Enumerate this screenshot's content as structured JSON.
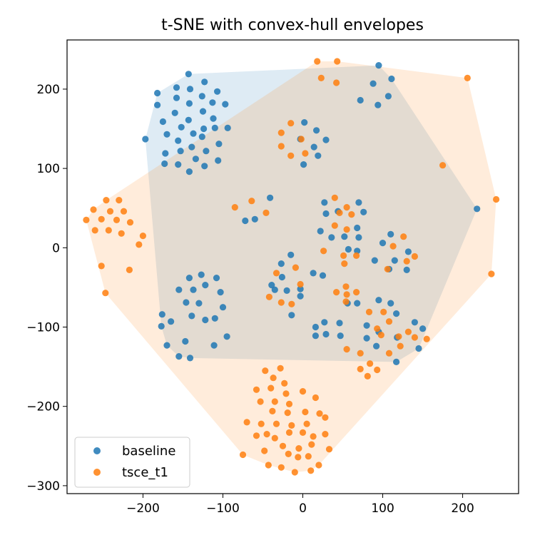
{
  "chart_data": {
    "type": "scatter",
    "title": "t-SNE with convex-hull envelopes",
    "xlabel": "",
    "ylabel": "",
    "xlim": [
      -295,
      270
    ],
    "ylim": [
      -310,
      262
    ],
    "xticks": [
      -200,
      -100,
      0,
      100,
      200
    ],
    "yticks": [
      -300,
      -200,
      -100,
      0,
      100,
      200
    ],
    "xtick_labels": [
      "−200",
      "−100",
      "0",
      "100",
      "200"
    ],
    "ytick_labels": [
      "−300",
      "−200",
      "−100",
      "0",
      "100",
      "200"
    ],
    "grid": false,
    "legend_position": "lower-left",
    "series": [
      {
        "name": "baseline",
        "color": "#1f77b4",
        "hull_color": "#1f77b4",
        "points": [
          [
            -143,
            219
          ],
          [
            -182,
            195
          ],
          [
            -158,
            202
          ],
          [
            -141,
            200
          ],
          [
            -123,
            209
          ],
          [
            -107,
            197
          ],
          [
            -182,
            180
          ],
          [
            -158,
            189
          ],
          [
            -142,
            182
          ],
          [
            -126,
            191
          ],
          [
            -113,
            183
          ],
          [
            -97,
            181
          ],
          [
            -175,
            159
          ],
          [
            -160,
            170
          ],
          [
            -143,
            161
          ],
          [
            -125,
            172
          ],
          [
            -112,
            163
          ],
          [
            -170,
            143
          ],
          [
            -152,
            152
          ],
          [
            -137,
            144
          ],
          [
            -124,
            150
          ],
          [
            -110,
            151
          ],
          [
            -94,
            151
          ],
          [
            -197,
            137
          ],
          [
            -156,
            135
          ],
          [
            -139,
            127
          ],
          [
            -126,
            140
          ],
          [
            -105,
            131
          ],
          [
            -172,
            119
          ],
          [
            -153,
            122
          ],
          [
            -134,
            112
          ],
          [
            -121,
            122
          ],
          [
            -106,
            110
          ],
          [
            -173,
            106
          ],
          [
            -156,
            105
          ],
          [
            -142,
            96
          ],
          [
            -123,
            103
          ],
          [
            95,
            230
          ],
          [
            111,
            213
          ],
          [
            88,
            207
          ],
          [
            107,
            191
          ],
          [
            72,
            186
          ],
          [
            94,
            180
          ],
          [
            -72,
            34
          ],
          [
            -60,
            36
          ],
          [
            -41,
            63
          ],
          [
            2,
            158
          ],
          [
            17,
            148
          ],
          [
            29,
            136
          ],
          [
            14,
            127
          ],
          [
            -3,
            137
          ],
          [
            19,
            116
          ],
          [
            1,
            105
          ],
          [
            27,
            57
          ],
          [
            29,
            43
          ],
          [
            44,
            46
          ],
          [
            70,
            57
          ],
          [
            76,
            45
          ],
          [
            22,
            21
          ],
          [
            36,
            13
          ],
          [
            52,
            14
          ],
          [
            68,
            25
          ],
          [
            70,
            13
          ],
          [
            57,
            -2
          ],
          [
            68,
            -4
          ],
          [
            90,
            -16
          ],
          [
            110,
            17
          ],
          [
            100,
            6
          ],
          [
            115,
            -16
          ],
          [
            130,
            -28
          ],
          [
            132,
            -5
          ],
          [
            108,
            -27
          ],
          [
            -15,
            -9
          ],
          [
            -27,
            -20
          ],
          [
            -39,
            -47
          ],
          [
            -26,
            -37
          ],
          [
            -35,
            -53
          ],
          [
            -20,
            -54
          ],
          [
            -3,
            -52
          ],
          [
            -3,
            -61
          ],
          [
            13,
            -32
          ],
          [
            25,
            -35
          ],
          [
            -14,
            -85
          ],
          [
            -142,
            -38
          ],
          [
            -127,
            -34
          ],
          [
            -108,
            -38
          ],
          [
            -155,
            -53
          ],
          [
            -137,
            -53
          ],
          [
            -122,
            -47
          ],
          [
            -103,
            -56
          ],
          [
            -146,
            -69
          ],
          [
            -130,
            -70
          ],
          [
            -100,
            -75
          ],
          [
            -139,
            -86
          ],
          [
            -122,
            -91
          ],
          [
            -110,
            -89
          ],
          [
            -176,
            -84
          ],
          [
            -177,
            -99
          ],
          [
            -165,
            -93
          ],
          [
            -170,
            -123
          ],
          [
            -155,
            -137
          ],
          [
            -147,
            -118
          ],
          [
            -141,
            -139
          ],
          [
            -111,
            -123
          ],
          [
            -95,
            -112
          ],
          [
            95,
            -66
          ],
          [
            110,
            -70
          ],
          [
            117,
            -83
          ],
          [
            68,
            -70
          ],
          [
            56,
            -70
          ],
          [
            27,
            -94
          ],
          [
            46,
            -95
          ],
          [
            16,
            -100
          ],
          [
            80,
            -98
          ],
          [
            95,
            -106
          ],
          [
            29,
            -109
          ],
          [
            47,
            -111
          ],
          [
            16,
            -111
          ],
          [
            80,
            -114
          ],
          [
            92,
            -124
          ],
          [
            118,
            -113
          ],
          [
            140,
            -94
          ],
          [
            150,
            -102
          ],
          [
            145,
            -127
          ],
          [
            117,
            -144
          ],
          [
            218,
            49
          ]
        ]
      },
      {
        "name": "tsce_t1",
        "color": "#ff7f0e",
        "hull_color": "#ff7f0e",
        "points": [
          [
            18,
            235
          ],
          [
            43,
            235
          ],
          [
            23,
            214
          ],
          [
            42,
            208
          ],
          [
            206,
            214
          ],
          [
            175,
            104
          ],
          [
            242,
            61
          ],
          [
            236,
            -33
          ],
          [
            -15,
            157
          ],
          [
            -27,
            145
          ],
          [
            -2,
            137
          ],
          [
            -27,
            128
          ],
          [
            -15,
            116
          ],
          [
            3,
            119
          ],
          [
            -85,
            51
          ],
          [
            -64,
            59
          ],
          [
            -46,
            44
          ],
          [
            -246,
            60
          ],
          [
            -230,
            60
          ],
          [
            -262,
            48
          ],
          [
            -241,
            46
          ],
          [
            -224,
            46
          ],
          [
            -271,
            35
          ],
          [
            -252,
            36
          ],
          [
            -233,
            35
          ],
          [
            -216,
            32
          ],
          [
            -260,
            22
          ],
          [
            -243,
            22
          ],
          [
            -227,
            18
          ],
          [
            -200,
            15
          ],
          [
            -205,
            4
          ],
          [
            -252,
            -23
          ],
          [
            -217,
            -28
          ],
          [
            -247,
            -57
          ],
          [
            40,
            63
          ],
          [
            46,
            44
          ],
          [
            55,
            51
          ],
          [
            61,
            42
          ],
          [
            40,
            28
          ],
          [
            55,
            23
          ],
          [
            26,
            -4
          ],
          [
            51,
            -10
          ],
          [
            67,
            -10
          ],
          [
            52,
            -20
          ],
          [
            106,
            -27
          ],
          [
            126,
            14
          ],
          [
            113,
            2
          ],
          [
            130,
            -17
          ],
          [
            140,
            -11
          ],
          [
            -33,
            -32
          ],
          [
            -9,
            -25
          ],
          [
            -42,
            -62
          ],
          [
            -27,
            -69
          ],
          [
            -14,
            -71
          ],
          [
            -3,
            -46
          ],
          [
            42,
            -56
          ],
          [
            55,
            -59
          ],
          [
            54,
            -49
          ],
          [
            67,
            -56
          ],
          [
            54,
            -68
          ],
          [
            83,
            -81
          ],
          [
            101,
            -81
          ],
          [
            108,
            -93
          ],
          [
            93,
            -102
          ],
          [
            98,
            -110
          ],
          [
            120,
            -112
          ],
          [
            132,
            -106
          ],
          [
            140,
            -113
          ],
          [
            155,
            -115
          ],
          [
            122,
            -124
          ],
          [
            55,
            -128
          ],
          [
            72,
            -133
          ],
          [
            108,
            -133
          ],
          [
            84,
            -146
          ],
          [
            72,
            -153
          ],
          [
            93,
            -154
          ],
          [
            81,
            -162
          ],
          [
            -47,
            -155
          ],
          [
            -28,
            -152
          ],
          [
            -37,
            -164
          ],
          [
            -23,
            -171
          ],
          [
            -58,
            -179
          ],
          [
            -40,
            -177
          ],
          [
            -21,
            -184
          ],
          [
            0,
            -181
          ],
          [
            16,
            -189
          ],
          [
            -53,
            -194
          ],
          [
            -35,
            -194
          ],
          [
            -17,
            -197
          ],
          [
            -38,
            -206
          ],
          [
            -19,
            -208
          ],
          [
            3,
            -207
          ],
          [
            21,
            -209
          ],
          [
            -70,
            -220
          ],
          [
            -52,
            -222
          ],
          [
            -33,
            -222
          ],
          [
            -14,
            -224
          ],
          [
            5,
            -222
          ],
          [
            28,
            -214
          ],
          [
            -45,
            -235
          ],
          [
            -17,
            -233
          ],
          [
            0,
            -233
          ],
          [
            13,
            -238
          ],
          [
            -58,
            -237
          ],
          [
            -35,
            -240
          ],
          [
            -25,
            -250
          ],
          [
            -5,
            -253
          ],
          [
            11,
            -248
          ],
          [
            28,
            -235
          ],
          [
            33,
            -254
          ],
          [
            -48,
            -256
          ],
          [
            -18,
            -260
          ],
          [
            -6,
            -264
          ],
          [
            7,
            -263
          ],
          [
            -75,
            -261
          ],
          [
            -43,
            -274
          ],
          [
            -27,
            -277
          ],
          [
            -10,
            -283
          ],
          [
            10,
            -281
          ],
          [
            20,
            -274
          ]
        ]
      }
    ]
  }
}
